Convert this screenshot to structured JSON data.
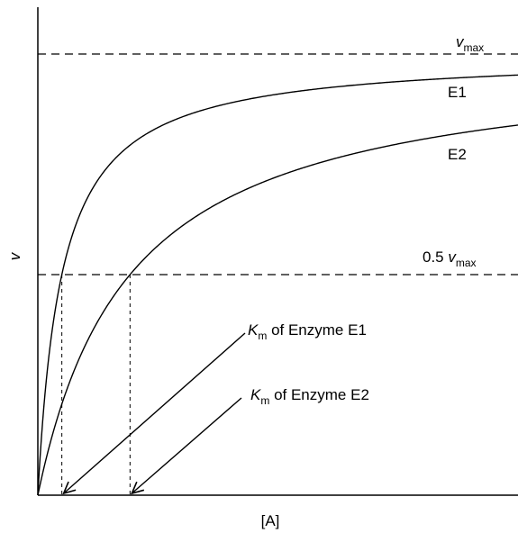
{
  "chart_data": {
    "type": "line",
    "title": "",
    "xlabel": "[A]",
    "ylabel": "v",
    "xlim": [
      0,
      25
    ],
    "ylim": [
      0,
      1.0
    ],
    "series": [
      {
        "name": "E1",
        "vmax": 1.0,
        "km": 1.25
      },
      {
        "name": "E2",
        "vmax": 1.0,
        "km": 4.8
      }
    ],
    "reference_lines": {
      "vmax": {
        "y": 1.0,
        "symbol": "v",
        "subscript": "max"
      },
      "half_vmax": {
        "y": 0.5,
        "prefix": "0.5 ",
        "symbol": "v",
        "subscript": "max"
      }
    },
    "annotations": [
      {
        "symbol": "K",
        "subscript": "m",
        "text": " of Enzyme E1",
        "target_x": 1.25
      },
      {
        "symbol": "K",
        "subscript": "m",
        "text": " of Enzyme E2",
        "target_x": 4.8
      }
    ],
    "grid": false
  }
}
